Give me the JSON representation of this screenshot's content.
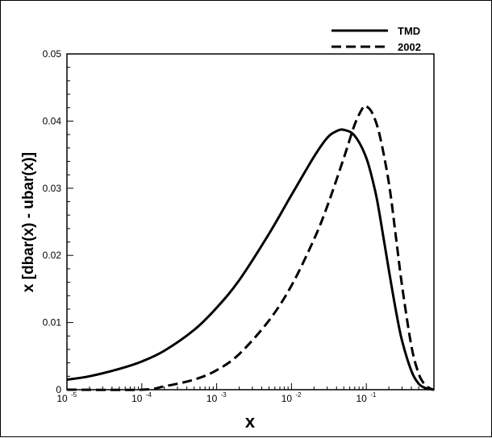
{
  "chart_data": {
    "type": "line",
    "xlabel": "x",
    "ylabel": "x [dbar(x) - ubar(x)]",
    "xscale": "log",
    "xlim": [
      1e-05,
      0.8
    ],
    "ylim": [
      0,
      0.05
    ],
    "x_ticks": [
      {
        "base": "10",
        "exp": "-5",
        "value": 1e-05
      },
      {
        "base": "10",
        "exp": "-4",
        "value": 0.0001
      },
      {
        "base": "10",
        "exp": "-3",
        "value": 0.001
      },
      {
        "base": "10",
        "exp": "-2",
        "value": 0.01
      },
      {
        "base": "10",
        "exp": "-1",
        "value": 0.1
      }
    ],
    "y_ticks": [
      "0",
      "0.01",
      "0.02",
      "0.03",
      "0.04",
      "0.05"
    ],
    "legend_position": "top-right",
    "series": [
      {
        "name": "TMD",
        "style": "solid",
        "x": [
          1e-05,
          2e-05,
          5e-05,
          0.0001,
          0.0002,
          0.0005,
          0.001,
          0.002,
          0.005,
          0.01,
          0.02,
          0.03,
          0.04,
          0.05,
          0.07,
          0.1,
          0.13,
          0.15,
          0.2,
          0.25,
          0.3,
          0.4,
          0.5,
          0.6,
          0.7,
          0.8
        ],
        "y": [
          0.0015,
          0.002,
          0.0031,
          0.0042,
          0.0058,
          0.0089,
          0.0122,
          0.0163,
          0.0232,
          0.029,
          0.0347,
          0.0375,
          0.0385,
          0.0387,
          0.0378,
          0.0345,
          0.0298,
          0.0262,
          0.0178,
          0.0116,
          0.0073,
          0.0028,
          0.0009,
          0.0003,
          0.0001,
          0
        ]
      },
      {
        "name": "2002",
        "style": "dashed",
        "x": [
          1e-05,
          0.0001,
          0.0002,
          0.0005,
          0.001,
          0.002,
          0.005,
          0.01,
          0.02,
          0.03,
          0.05,
          0.07,
          0.09,
          0.1,
          0.12,
          0.15,
          0.2,
          0.25,
          0.3,
          0.4,
          0.5,
          0.6,
          0.7,
          0.8
        ],
        "y": [
          0,
          0,
          0.0005,
          0.0015,
          0.0029,
          0.0053,
          0.0103,
          0.0155,
          0.0224,
          0.0273,
          0.0345,
          0.0395,
          0.042,
          0.0422,
          0.0412,
          0.038,
          0.0308,
          0.0225,
          0.0155,
          0.0065,
          0.0024,
          0.0008,
          0.0002,
          0
        ]
      }
    ]
  }
}
